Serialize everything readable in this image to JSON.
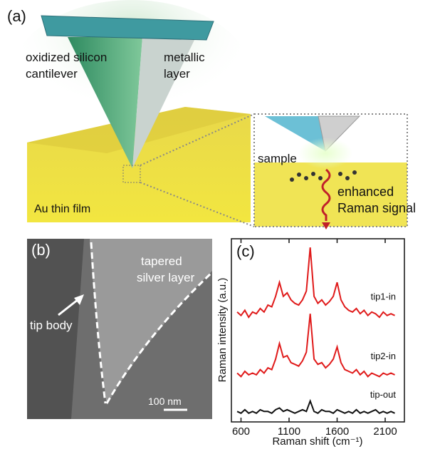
{
  "panel_a": {
    "label": "(a)",
    "cantilever_label": [
      "oxidized silicon",
      "cantilever"
    ],
    "metal_label": [
      "metallic",
      "layer"
    ],
    "film_label": "Au thin film",
    "sample_label": "sample",
    "signal_label": [
      "enhanced",
      "Raman signal"
    ]
  },
  "panel_b": {
    "label": "(b)",
    "silver_label": [
      "tapered",
      "silver layer"
    ],
    "tip_label": "tip body",
    "scale_label": "100 nm"
  },
  "chart_data": {
    "type": "line",
    "label": "(c)",
    "xlabel": "Raman shift (cm⁻¹)",
    "ylabel": "Raman intensity (a.u.)",
    "x": [
      560,
      600,
      640,
      680,
      720,
      760,
      800,
      840,
      880,
      920,
      960,
      1000,
      1040,
      1080,
      1120,
      1160,
      1200,
      1240,
      1280,
      1320,
      1360,
      1400,
      1440,
      1480,
      1520,
      1560,
      1600,
      1640,
      1680,
      1720,
      1760,
      1800,
      1840,
      1880,
      1920,
      1960,
      2000,
      2040,
      2080,
      2120,
      2160,
      2200
    ],
    "series": [
      {
        "name": "tip1-in",
        "color": "#e01a1a",
        "values": [
          63,
          61,
          64,
          60,
          63,
          62,
          65,
          63,
          67,
          66,
          72,
          80,
          72,
          74,
          70,
          68,
          67,
          70,
          75,
          100,
          72,
          68,
          70,
          67,
          69,
          72,
          80,
          70,
          66,
          64,
          63,
          65,
          62,
          64,
          61,
          63,
          62,
          60,
          63,
          61,
          62,
          61
        ]
      },
      {
        "name": "tip2-in",
        "color": "#e01a1a",
        "values": [
          28,
          26,
          29,
          27,
          28,
          27,
          30,
          28,
          31,
          30,
          36,
          45,
          37,
          38,
          34,
          33,
          32,
          35,
          40,
          62,
          36,
          33,
          34,
          31,
          33,
          36,
          43,
          34,
          30,
          29,
          28,
          30,
          27,
          29,
          26,
          28,
          27,
          26,
          28,
          27,
          28,
          27
        ]
      },
      {
        "name": "tip-out",
        "color": "#111111",
        "values": [
          6,
          5,
          7,
          5,
          6,
          5,
          7,
          6,
          6,
          5,
          7,
          8,
          6,
          7,
          6,
          5,
          6,
          7,
          6,
          12,
          6,
          5,
          7,
          6,
          6,
          5,
          7,
          6,
          5,
          6,
          5,
          7,
          5,
          6,
          5,
          6,
          7,
          5,
          6,
          5,
          6,
          5
        ]
      }
    ],
    "xlim": [
      500,
      2300
    ],
    "ylim": [
      0,
      105
    ],
    "xticks": [
      600,
      1100,
      1600,
      2100
    ]
  }
}
